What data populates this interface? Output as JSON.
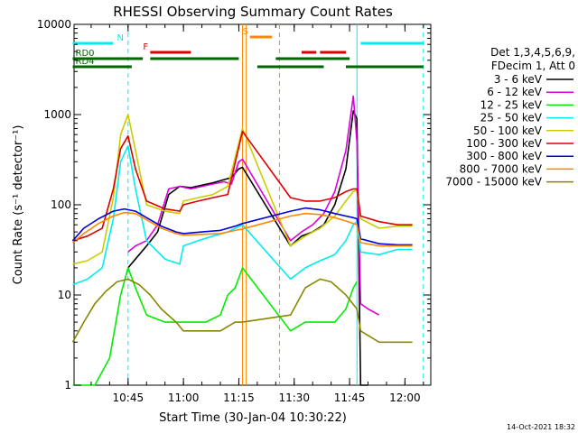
{
  "chart_data": {
    "type": "line",
    "title": "RHESSI Observing Summary Count Rates",
    "xlabel": "Start Time (30-Jan-04 10:30:22)",
    "ylabel": "Count Rate (s⁻¹ detector⁻¹)",
    "y_scale": "log",
    "ylim": [
      1,
      10000
    ],
    "xlim": [
      "10:30:22",
      "12:07:00"
    ],
    "x_ticks": [
      "10:45",
      "11:00",
      "11:15",
      "11:30",
      "11:45",
      "12:00"
    ],
    "y_ticks": [
      "1",
      "10",
      "100",
      "1000",
      "10000"
    ],
    "legend_header": [
      "Det 1,3,4,5,6,9,",
      "FDecim 1, Att 0"
    ],
    "legend_position": "right",
    "timestamp": "14-Oct-2021 18:32",
    "gaps": [
      [
        "11:16",
        "11:29"
      ],
      [
        "11:47",
        "11:48"
      ]
    ],
    "series": [
      {
        "name": "3 - 6 keV",
        "color": "#000000",
        "x": [
          "10:41",
          "10:43",
          "10:45",
          "10:47",
          "10:50",
          "10:53",
          "10:56",
          "10:59",
          "11:02",
          "11:05",
          "11:08",
          "11:11",
          "11:13",
          "11:15",
          "11:16",
          "11:29",
          "11:32",
          "11:35",
          "11:38",
          "11:41",
          "11:44",
          "11:46",
          "11:47",
          "11:48",
          "11:50"
        ],
        "values": [
          null,
          null,
          20,
          25,
          35,
          50,
          130,
          160,
          155,
          165,
          175,
          190,
          200,
          250,
          260,
          35,
          45,
          50,
          60,
          100,
          250,
          1100,
          900,
          1,
          1
        ]
      },
      {
        "name": "6 - 12 keV",
        "color": "#dd00dd",
        "x": [
          "10:41",
          "10:43",
          "10:45",
          "10:47",
          "10:50",
          "10:53",
          "10:56",
          "10:59",
          "11:02",
          "11:05",
          "11:08",
          "11:11",
          "11:13",
          "11:15",
          "11:16",
          "11:29",
          "11:32",
          "11:35",
          "11:38",
          "11:41",
          "11:44",
          "11:46",
          "11:47",
          "11:48",
          "11:50",
          "11:53"
        ],
        "values": [
          null,
          null,
          30,
          35,
          40,
          60,
          150,
          160,
          150,
          160,
          170,
          180,
          170,
          300,
          320,
          40,
          50,
          60,
          80,
          140,
          400,
          1600,
          500,
          8,
          7,
          6
        ]
      },
      {
        "name": "12 - 25 keV",
        "color": "#00ee00",
        "x": [
          "10:30",
          "10:36",
          "10:40",
          "10:43",
          "10:45",
          "10:47",
          "10:50",
          "10:55",
          "11:00",
          "11:03",
          "11:06",
          "11:10",
          "11:12",
          "11:14",
          "11:16",
          "11:29",
          "11:33",
          "11:37",
          "11:41",
          "11:44",
          "11:46",
          "11:47"
        ],
        "values": [
          1,
          1,
          2,
          10,
          20,
          12,
          6,
          5,
          5,
          5,
          5,
          6,
          10,
          12,
          20,
          4,
          5,
          5,
          5,
          7,
          12,
          14
        ]
      },
      {
        "name": "25 - 50 keV",
        "color": "#00eeee",
        "x": [
          "10:30",
          "10:34",
          "10:38",
          "10:41",
          "10:43",
          "10:45",
          "10:47",
          "10:50",
          "10:55",
          "10:59",
          "11:00",
          "11:04",
          "11:08",
          "11:12",
          "11:16",
          "11:29",
          "11:33",
          "11:37",
          "11:41",
          "11:44",
          "11:46",
          "11:47",
          "11:48",
          "11:53",
          "11:58",
          "12:02"
        ],
        "values": [
          13,
          15,
          20,
          70,
          300,
          450,
          150,
          40,
          25,
          22,
          35,
          40,
          45,
          50,
          60,
          15,
          20,
          24,
          28,
          40,
          60,
          65,
          30,
          28,
          32,
          32
        ]
      },
      {
        "name": "50 - 100 keV",
        "color": "#cccc00",
        "x": [
          "10:30",
          "10:34",
          "10:38",
          "10:41",
          "10:43",
          "10:45",
          "10:47",
          "10:50",
          "10:55",
          "10:59",
          "11:00",
          "11:04",
          "11:08",
          "11:12",
          "11:16",
          "11:29",
          "11:33",
          "11:37",
          "11:41",
          "11:44",
          "11:46",
          "11:47",
          "11:48",
          "11:53",
          "11:58",
          "12:02"
        ],
        "values": [
          22,
          24,
          30,
          120,
          600,
          1000,
          400,
          100,
          85,
          80,
          110,
          120,
          130,
          160,
          700,
          35,
          45,
          55,
          75,
          110,
          140,
          145,
          70,
          55,
          58,
          58
        ]
      },
      {
        "name": "100 - 300 keV",
        "color": "#dd0000",
        "x": [
          "10:30",
          "10:34",
          "10:38",
          "10:41",
          "10:43",
          "10:45",
          "10:47",
          "10:50",
          "10:55",
          "10:59",
          "11:00",
          "11:04",
          "11:08",
          "11:12",
          "11:16",
          "11:29",
          "11:33",
          "11:37",
          "11:41",
          "11:44",
          "11:46",
          "11:47",
          "11:48",
          "11:53",
          "11:58",
          "12:02"
        ],
        "values": [
          40,
          45,
          55,
          150,
          420,
          580,
          250,
          110,
          90,
          85,
          100,
          110,
          120,
          130,
          650,
          120,
          110,
          110,
          120,
          140,
          150,
          150,
          75,
          65,
          60,
          60
        ]
      },
      {
        "name": "300 - 800 keV",
        "color": "#0000dd",
        "x": [
          "10:30",
          "10:33",
          "10:37",
          "10:41",
          "10:44",
          "10:47",
          "10:50",
          "10:54",
          "10:58",
          "11:00",
          "11:05",
          "11:10",
          "11:14",
          "11:16",
          "11:29",
          "11:33",
          "11:37",
          "11:41",
          "11:44",
          "11:46",
          "11:47",
          "11:48",
          "11:53",
          "11:58",
          "12:02"
        ],
        "values": [
          40,
          55,
          70,
          85,
          90,
          85,
          72,
          58,
          50,
          48,
          50,
          52,
          58,
          62,
          85,
          92,
          88,
          80,
          75,
          72,
          70,
          42,
          37,
          36,
          36
        ]
      },
      {
        "name": "800 - 7000 keV",
        "color": "#ff8800",
        "x": [
          "10:30",
          "10:33",
          "10:37",
          "10:41",
          "10:44",
          "10:47",
          "10:50",
          "10:54",
          "10:58",
          "11:00",
          "11:05",
          "11:10",
          "11:14",
          "11:16",
          "11:29",
          "11:33",
          "11:37",
          "11:41",
          "11:44",
          "11:46",
          "11:47",
          "11:48",
          "11:53",
          "11:58",
          "12:02"
        ],
        "values": [
          38,
          48,
          62,
          75,
          82,
          80,
          68,
          55,
          48,
          46,
          47,
          48,
          52,
          54,
          75,
          80,
          78,
          72,
          66,
          62,
          60,
          38,
          35,
          35,
          35
        ]
      },
      {
        "name": "7000 - 15000 keV",
        "color": "#888800",
        "x": [
          "10:30",
          "10:33",
          "10:36",
          "10:39",
          "10:42",
          "10:45",
          "10:48",
          "10:51",
          "10:54",
          "10:58",
          "11:00",
          "11:05",
          "11:10",
          "11:14",
          "11:16",
          "11:29",
          "11:33",
          "11:37",
          "11:40",
          "11:44",
          "11:47",
          "11:48",
          "11:53",
          "11:58",
          "12:02"
        ],
        "values": [
          3,
          5,
          8,
          11,
          14,
          15,
          13,
          10,
          7,
          5,
          4,
          4,
          4,
          5,
          5,
          6,
          12,
          15,
          14,
          10,
          7,
          4,
          3,
          3,
          3
        ]
      }
    ],
    "mode_bars": [
      {
        "label": "N",
        "color": "#00eeee",
        "segments": [
          [
            "10:30",
            "10:41"
          ],
          [
            "11:48",
            "12:05"
          ]
        ]
      },
      {
        "label": "F",
        "color": "#dd0000",
        "segments": [
          [
            "10:51",
            "11:02"
          ],
          [
            "11:32",
            "11:36"
          ],
          [
            "11:37",
            "11:44"
          ]
        ]
      },
      {
        "label": "S",
        "color": "#ff8800",
        "segments": [
          [
            "11:18",
            "11:24"
          ]
        ]
      },
      {
        "label": "RD0",
        "color": "#006600",
        "segments": [
          [
            "10:30",
            "10:49"
          ],
          [
            "10:51",
            "11:15"
          ],
          [
            "11:25",
            "11:45"
          ]
        ]
      },
      {
        "label": "RD4",
        "color": "#006600",
        "segments": [
          [
            "10:30",
            "10:46"
          ],
          [
            "11:20",
            "11:38"
          ],
          [
            "11:44",
            "12:05"
          ]
        ]
      }
    ],
    "markers": [
      {
        "type": "dashed",
        "color": "#00eeee",
        "x": "10:45"
      },
      {
        "type": "solid",
        "color": "#ff8800",
        "x": "11:16"
      },
      {
        "type": "solid",
        "color": "#ff8800",
        "x": "11:17"
      },
      {
        "type": "dashed",
        "color": "#ff8800",
        "x": "11:26"
      },
      {
        "type": "solid",
        "color": "#00eeee",
        "x": "11:47"
      },
      {
        "type": "dashed",
        "color": "#00eeee",
        "x": "12:05"
      }
    ]
  }
}
